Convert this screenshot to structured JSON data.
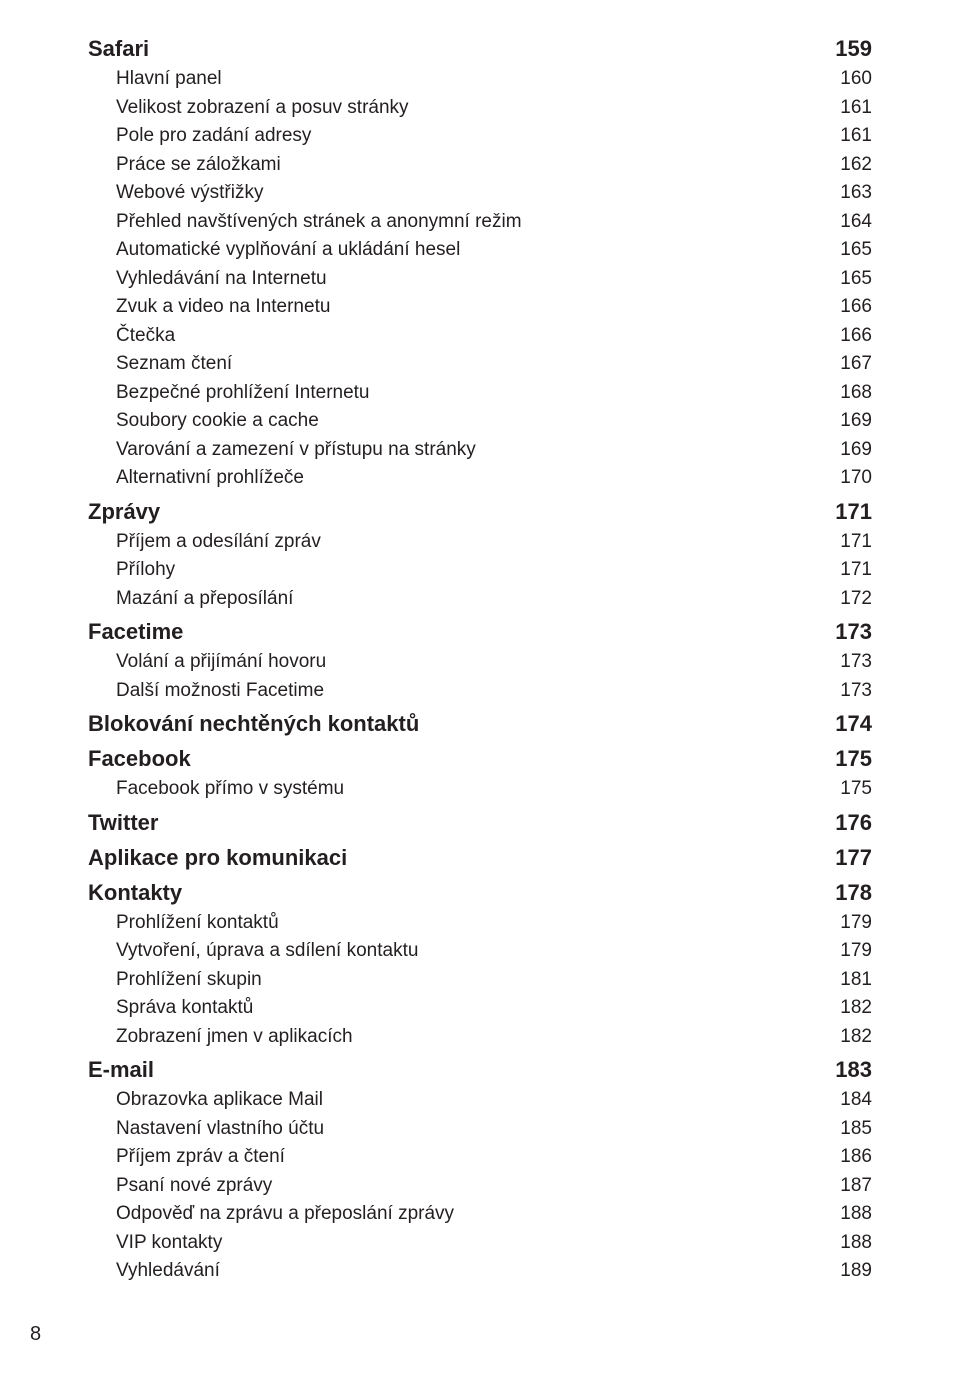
{
  "page_number": "8",
  "colors": {
    "text": "#231f20",
    "background": "#ffffff"
  },
  "typography": {
    "section_fontsize": 22,
    "section_fontweight": 700,
    "sub_fontsize": 19,
    "sub_fontweight": 300
  },
  "toc": [
    {
      "level": "section",
      "label": "Safari",
      "page": "159"
    },
    {
      "level": "sub",
      "label": "Hlavní panel",
      "page": "160"
    },
    {
      "level": "sub",
      "label": "Velikost zobrazení a posuv stránky",
      "page": "161"
    },
    {
      "level": "sub",
      "label": "Pole pro zadání adresy",
      "page": "161"
    },
    {
      "level": "sub",
      "label": "Práce se záložkami",
      "page": "162"
    },
    {
      "level": "sub",
      "label": "Webové výstřižky",
      "page": "163"
    },
    {
      "level": "sub",
      "label": "Přehled navštívených stránek a anonymní režim",
      "page": "164"
    },
    {
      "level": "sub",
      "label": "Automatické vyplňování a ukládání hesel",
      "page": "165"
    },
    {
      "level": "sub",
      "label": "Vyhledávání na Internetu",
      "page": "165"
    },
    {
      "level": "sub",
      "label": "Zvuk a video na Internetu",
      "page": "166"
    },
    {
      "level": "sub",
      "label": "Čtečka",
      "page": "166"
    },
    {
      "level": "sub",
      "label": "Seznam čtení",
      "page": "167"
    },
    {
      "level": "sub",
      "label": "Bezpečné prohlížení Internetu",
      "page": "168"
    },
    {
      "level": "sub",
      "label": "Soubory cookie a cache",
      "page": "169"
    },
    {
      "level": "sub",
      "label": "Varování a zamezení v přístupu na stránky",
      "page": "169"
    },
    {
      "level": "sub",
      "label": "Alternativní prohlížeče",
      "page": "170"
    },
    {
      "level": "section",
      "label": "Zprávy",
      "page": "171"
    },
    {
      "level": "sub",
      "label": "Příjem a odesílání zpráv",
      "page": "171"
    },
    {
      "level": "sub",
      "label": "Přílohy",
      "page": "171"
    },
    {
      "level": "sub",
      "label": "Mazání a přeposílání",
      "page": "172"
    },
    {
      "level": "section",
      "label": "Facetime",
      "page": "173"
    },
    {
      "level": "sub",
      "label": "Volání a přijímání hovoru",
      "page": "173"
    },
    {
      "level": "sub",
      "label": "Další možnosti Facetime",
      "page": "173"
    },
    {
      "level": "section",
      "label": "Blokování nechtěných kontaktů",
      "page": "174"
    },
    {
      "level": "section",
      "label": "Facebook",
      "page": "175"
    },
    {
      "level": "sub",
      "label": "Facebook přímo v systému",
      "page": "175"
    },
    {
      "level": "section",
      "label": "Twitter",
      "page": "176"
    },
    {
      "level": "section",
      "label": "Aplikace pro komunikaci",
      "page": "177"
    },
    {
      "level": "section",
      "label": "Kontakty",
      "page": "178"
    },
    {
      "level": "sub",
      "label": "Prohlížení kontaktů",
      "page": "179"
    },
    {
      "level": "sub",
      "label": "Vytvoření, úprava a sdílení kontaktu",
      "page": "179"
    },
    {
      "level": "sub",
      "label": "Prohlížení skupin",
      "page": "181"
    },
    {
      "level": "sub",
      "label": "Správa kontaktů",
      "page": "182"
    },
    {
      "level": "sub",
      "label": "Zobrazení jmen v aplikacích",
      "page": "182"
    },
    {
      "level": "section",
      "label": "E-mail",
      "page": "183"
    },
    {
      "level": "sub",
      "label": "Obrazovka aplikace Mail",
      "page": "184"
    },
    {
      "level": "sub",
      "label": "Nastavení vlastního účtu",
      "page": "185"
    },
    {
      "level": "sub",
      "label": "Příjem zpráv a čtení",
      "page": "186"
    },
    {
      "level": "sub",
      "label": "Psaní nové zprávy",
      "page": "187"
    },
    {
      "level": "sub",
      "label": "Odpověď na zprávu a přeposlání zprávy",
      "page": "188"
    },
    {
      "level": "sub",
      "label": "VIP kontakty",
      "page": "188"
    },
    {
      "level": "sub",
      "label": "Vyhledávání",
      "page": "189"
    }
  ]
}
